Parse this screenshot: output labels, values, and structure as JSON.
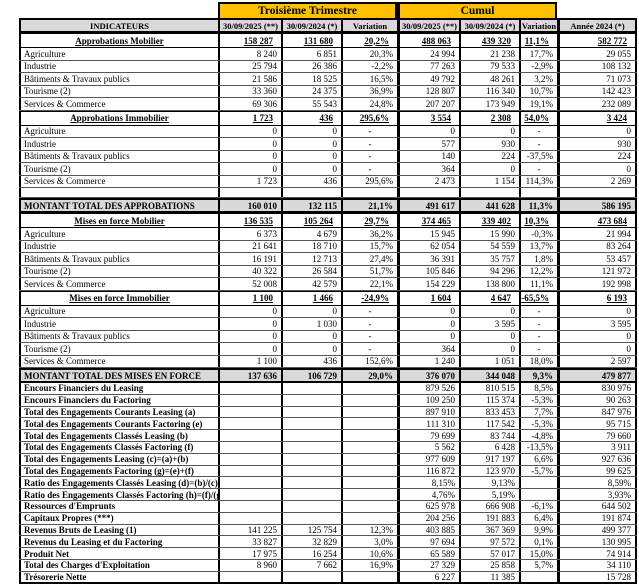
{
  "colors": {
    "band": "#FFC000",
    "header_bg": "#D9D9D9",
    "total_bg": "#D9D9D9",
    "border": "#000000"
  },
  "header": {
    "group_quarter": "Troisième Trimestre",
    "group_cumul": "Cumul",
    "col_indicateurs": "INDICATEURS",
    "col_q_2025": "30/09/2025 (**)",
    "col_q_2024": "30/09/2024 (*)",
    "col_q_variation": "Variation",
    "col_c_2025": "30/09/2025 (**)",
    "col_c_2024": "30/09/2024 (*)",
    "col_c_variation": "Variation",
    "col_annee": "Année 2024 (*)"
  },
  "rows": [
    {
      "t": "section",
      "label": "Approbations Mobilier",
      "v": [
        "158 287",
        "131 680",
        "20,2%",
        "488 063",
        "439 320",
        "11,1%",
        "582 772"
      ]
    },
    {
      "t": "item",
      "label": "Agriculture",
      "v": [
        "8 240",
        "6 851",
        "20,3%",
        "24 994",
        "21 238",
        "17,7%",
        "29 055"
      ]
    },
    {
      "t": "item",
      "label": "Industrie",
      "v": [
        "25 794",
        "26 386",
        "-2,2%",
        "77 263",
        "79 533",
        "-2,9%",
        "108 132"
      ]
    },
    {
      "t": "item",
      "label": "Bâtiments & Travaux publics",
      "v": [
        "21 586",
        "18 525",
        "16,5%",
        "49 792",
        "48 261",
        "3,2%",
        "71 073"
      ]
    },
    {
      "t": "item",
      "label": "Tourisme (2)",
      "v": [
        "33 360",
        "24 375",
        "36,9%",
        "128 807",
        "116 340",
        "10,7%",
        "142 423"
      ]
    },
    {
      "t": "item",
      "label": "Services & Commerce",
      "v": [
        "69 306",
        "55 543",
        "24,8%",
        "207 207",
        "173 949",
        "19,1%",
        "232 089"
      ]
    },
    {
      "t": "section",
      "label": "Approbations Immobilier",
      "v": [
        "1 723",
        "436",
        "295,6%",
        "3 554",
        "2 308",
        "54,0%",
        "3 424"
      ]
    },
    {
      "t": "item",
      "label": "Agriculture",
      "v": [
        "0",
        "0",
        "-",
        "0",
        "0",
        "-",
        "0"
      ]
    },
    {
      "t": "item",
      "label": "Industrie",
      "v": [
        "0",
        "0",
        "-",
        "577",
        "930",
        "-",
        "930"
      ]
    },
    {
      "t": "item",
      "label": "Bâtiments & Travaux publics",
      "v": [
        "0",
        "0",
        "-",
        "140",
        "224",
        "-37,5%",
        "224"
      ]
    },
    {
      "t": "item",
      "label": "Tourisme (2)",
      "v": [
        "0",
        "0",
        "-",
        "364",
        "0",
        "-",
        "0"
      ]
    },
    {
      "t": "item",
      "label": "Services & Commerce",
      "v": [
        "1 723",
        "436",
        "295,6%",
        "2 473",
        "1 154",
        "114,3%",
        "2 269"
      ]
    },
    {
      "t": "blank",
      "label": "",
      "v": [
        "",
        "",
        "",
        "",
        "",
        "",
        ""
      ]
    },
    {
      "t": "total",
      "label": "MONTANT TOTAL  DES APPROBATIONS",
      "v": [
        "160 010",
        "132 115",
        "21,1%",
        "491 617",
        "441 628",
        "11,3%",
        "586 195"
      ]
    },
    {
      "t": "section",
      "label": "Mises en force Mobilier",
      "v": [
        "136 535",
        "105 264",
        "29,7%",
        "374 465",
        "339 402",
        "10,3%",
        "473 684"
      ]
    },
    {
      "t": "item",
      "label": "Agriculture",
      "v": [
        "6 373",
        "4 679",
        "36,2%",
        "15 945",
        "15 990",
        "-0,3%",
        "21 994"
      ]
    },
    {
      "t": "item",
      "label": "Industrie",
      "v": [
        "21 641",
        "18 710",
        "15,7%",
        "62 054",
        "54 559",
        "13,7%",
        "83 264"
      ]
    },
    {
      "t": "item",
      "label": "Bâtiments & Travaux publics",
      "v": [
        "16 191",
        "12 713",
        "27,4%",
        "36 391",
        "35 757",
        "1,8%",
        "53 457"
      ]
    },
    {
      "t": "item",
      "label": "Tourisme (2)",
      "v": [
        "40 322",
        "26 584",
        "51,7%",
        "105 846",
        "94 296",
        "12,2%",
        "121 972"
      ]
    },
    {
      "t": "item",
      "label": "Services & Commerce",
      "v": [
        "52 008",
        "42 579",
        "22,1%",
        "154 229",
        "138 800",
        "11,1%",
        "192 998"
      ]
    },
    {
      "t": "section",
      "label": "Mises en force Immobilier",
      "v": [
        "1 100",
        "1 466",
        "-24,9%",
        "1 604",
        "4 647",
        "-65,5%",
        "6 193"
      ]
    },
    {
      "t": "item",
      "label": "Agriculture",
      "v": [
        "0",
        "0",
        "-",
        "0",
        "0",
        "-",
        "0"
      ]
    },
    {
      "t": "item",
      "label": "Industrie",
      "v": [
        "0",
        "1 030",
        "-",
        "0",
        "3 595",
        "-",
        "3 595"
      ]
    },
    {
      "t": "item",
      "label": "Bâtiments & Travaux publics",
      "v": [
        "0",
        "0",
        "-",
        "0",
        "0",
        "-",
        "0"
      ]
    },
    {
      "t": "item",
      "label": "Tourisme (2)",
      "v": [
        "0",
        "0",
        "-",
        "364",
        "0",
        "-",
        "0"
      ]
    },
    {
      "t": "item",
      "label": "Services & Commerce",
      "v": [
        "1 100",
        "436",
        "152,6%",
        "1 240",
        "1 051",
        "18,0%",
        "2 597"
      ]
    },
    {
      "t": "total",
      "label": "MONTANT TOTAL  DES MISES EN FORCE",
      "v": [
        "137 636",
        "106 729",
        "29,0%",
        "376 070",
        "344 048",
        "9,3%",
        "479 877"
      ]
    },
    {
      "t": "fin",
      "label": "Encours Financiers du Leasing",
      "v": [
        "",
        "",
        "",
        "879 526",
        "810 515",
        "8,5%",
        "830 976"
      ]
    },
    {
      "t": "fin",
      "label": "Encours Financiers du Factoring",
      "v": [
        "",
        "",
        "",
        "109 250",
        "115 374",
        "-5,3%",
        "90 263"
      ]
    },
    {
      "t": "fin",
      "label": "Total des  Engagements Courants Leasing (a)",
      "v": [
        "",
        "",
        "",
        "897 910",
        "833 453",
        "7,7%",
        "847 976"
      ]
    },
    {
      "t": "fin",
      "label": "Total des  Engagements Courants Factoring (e)",
      "v": [
        "",
        "",
        "",
        "111 310",
        "117 542",
        "-5,3%",
        "95 715"
      ]
    },
    {
      "t": "fin",
      "label": "Total des Engagements Classés Leasing  (b)",
      "v": [
        "",
        "",
        "",
        "79 699",
        "83 744",
        "-4,8%",
        "79 660"
      ]
    },
    {
      "t": "fin",
      "label": "Total des Engagements Classés Factoring  (f)",
      "v": [
        "",
        "",
        "",
        "5 562",
        "6 428",
        "-13,5%",
        "3 911"
      ]
    },
    {
      "t": "fin",
      "label": "Total des Engagements Leasing (c)=(a)+(b)",
      "v": [
        "",
        "",
        "",
        "977 609",
        "917 197",
        "6,6%",
        "927 636"
      ]
    },
    {
      "t": "fin",
      "label": "Total des Engagements Factoring (g)=(e)+(f)",
      "v": [
        "",
        "",
        "",
        "116 872",
        "123 970",
        "-5,7%",
        "99 625"
      ]
    },
    {
      "t": "fin",
      "label": "Ratio des Engagements Classés Leasing (d)=(b)/(c)",
      "v": [
        "",
        "",
        "",
        "8,15%",
        "9,13%",
        "",
        "8,59%"
      ]
    },
    {
      "t": "fin",
      "label": "Ratio des Engagements Classés Factoring (h)=(f)/(g)",
      "v": [
        "",
        "",
        "",
        "4,76%",
        "5,19%",
        "",
        "3,93%"
      ]
    },
    {
      "t": "fin",
      "label": "Ressources d'Emprunts",
      "v": [
        "",
        "",
        "",
        "625 978",
        "666 908",
        "-6,1%",
        "644 502"
      ]
    },
    {
      "t": "fin",
      "label": "Capitaux Propres (***)",
      "v": [
        "",
        "",
        "",
        "204 256",
        "191 883",
        "6,4%",
        "191 874"
      ]
    },
    {
      "t": "fin",
      "label": "Revenus Bruts de Leasing (1)",
      "v": [
        "141 225",
        "125 754",
        "12,3%",
        "403 885",
        "367 369",
        "9,9%",
        "499 377"
      ]
    },
    {
      "t": "fin",
      "label": "Revenus  du Leasing et du Factoring",
      "v": [
        "33 827",
        "32 829",
        "3,0%",
        "97 694",
        "97 572",
        "0,1%",
        "130 995"
      ]
    },
    {
      "t": "fin",
      "label": "Produit Net",
      "v": [
        "17 975",
        "16 254",
        "10,6%",
        "65 589",
        "57 017",
        "15,0%",
        "74 914"
      ]
    },
    {
      "t": "fin",
      "label": "Total des Charges d'Exploitation",
      "v": [
        "8 960",
        "7 662",
        "16,9%",
        "27 329",
        "25 858",
        "5,7%",
        "34 110"
      ]
    },
    {
      "t": "fin",
      "label": "Trésorerie Nette",
      "v": [
        "",
        "",
        "",
        "6 227",
        "11 385",
        "",
        "15 728"
      ]
    }
  ]
}
